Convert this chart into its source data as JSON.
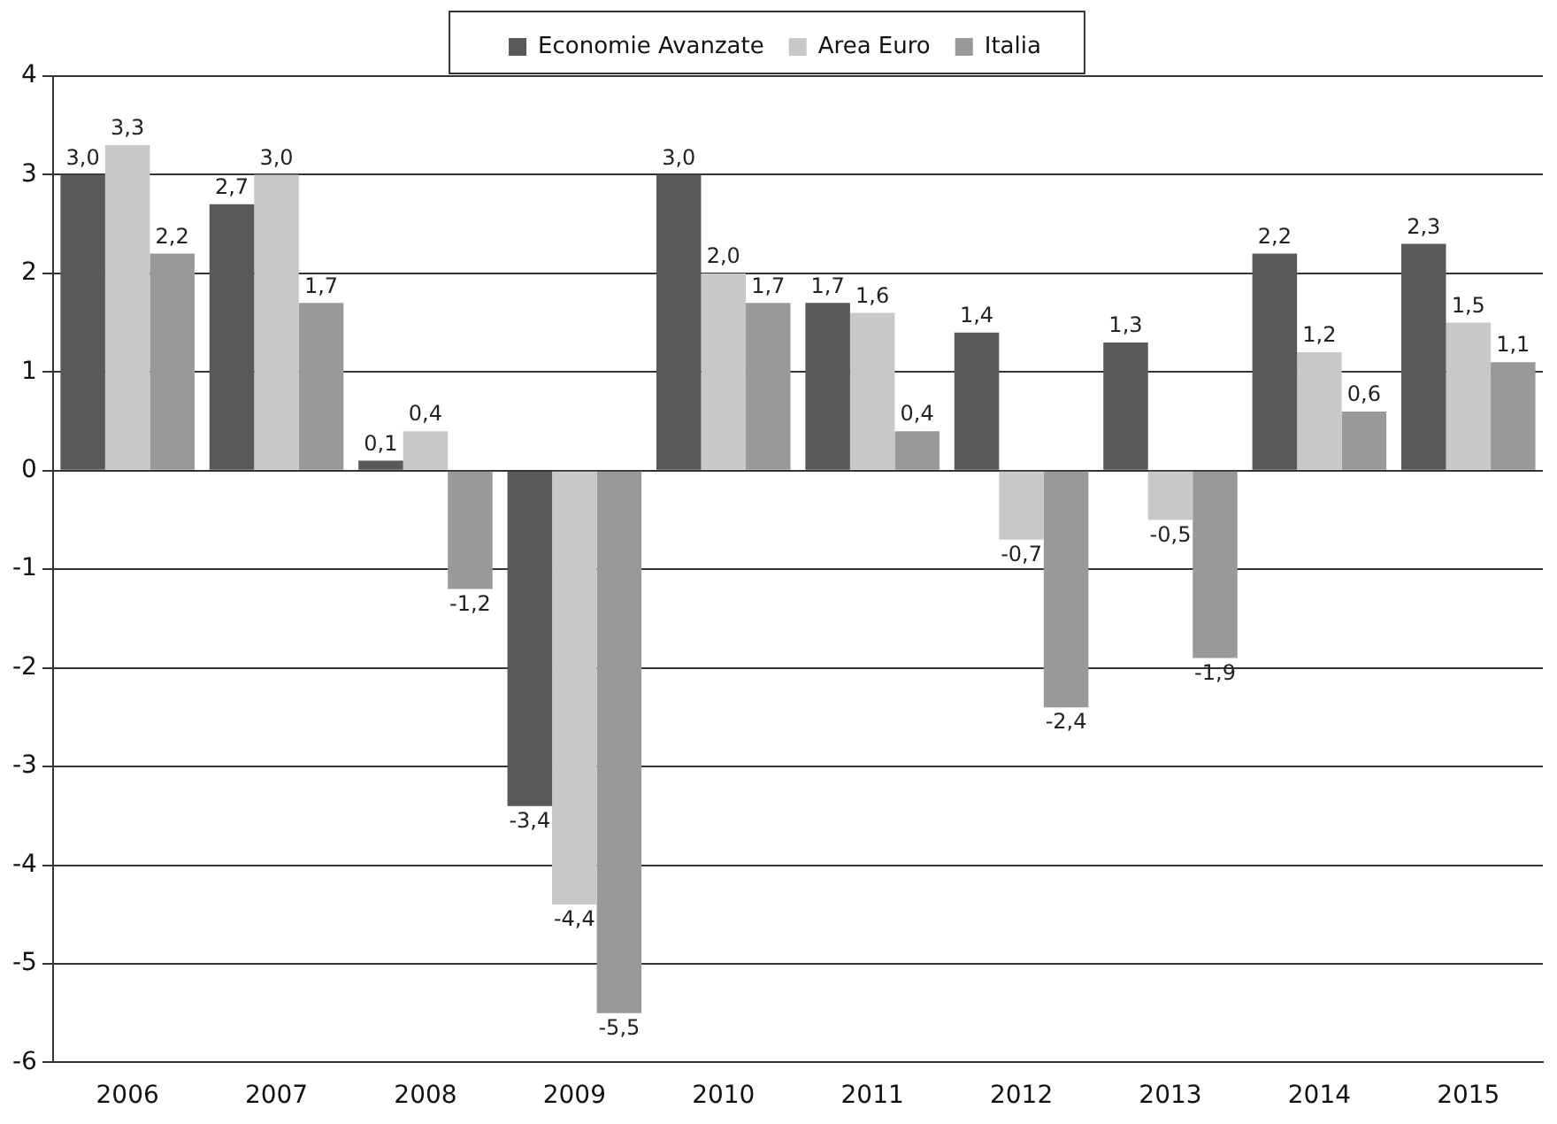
{
  "chart_data": {
    "type": "bar",
    "categories": [
      "2006",
      "2007",
      "2008",
      "2009",
      "2010",
      "2011",
      "2012",
      "2013",
      "2014",
      "2015"
    ],
    "series": [
      {
        "name": "Economie Avanzate",
        "color": "#595959",
        "values": [
          3.0,
          2.7,
          0.1,
          -3.4,
          3.0,
          1.7,
          1.4,
          1.3,
          2.2,
          2.3
        ],
        "value_labels": [
          "3,0",
          "2,7",
          "0,1",
          "-3,4",
          "3,0",
          "1,7",
          "1,4",
          "1,3",
          "2,2",
          "2,3"
        ]
      },
      {
        "name": "Area Euro",
        "color": "#c8c8c8",
        "values": [
          3.3,
          3.0,
          0.4,
          -4.4,
          2.0,
          1.6,
          -0.7,
          -0.5,
          1.2,
          1.5
        ],
        "value_labels": [
          "3,3",
          "3,0",
          "0,4",
          "-4,4",
          "2,0",
          "1,6",
          "-0,7",
          "-0,5",
          "1,2",
          "1,5"
        ]
      },
      {
        "name": "Italia",
        "color": "#999999",
        "values": [
          2.2,
          1.7,
          -1.2,
          -5.5,
          1.7,
          0.4,
          -2.4,
          -1.9,
          0.6,
          1.1
        ],
        "value_labels": [
          "2,2",
          "1,7",
          "-1,2",
          "-5,5",
          "1,7",
          "0,4",
          "-2,4",
          "-1,9",
          "0,6",
          "1,1"
        ]
      }
    ],
    "ylim": [
      -6,
      4
    ],
    "yticks": [
      -6,
      -5,
      -4,
      -3,
      -2,
      -1,
      0,
      1,
      2,
      3,
      4
    ],
    "grid": "y",
    "legend": "top"
  }
}
